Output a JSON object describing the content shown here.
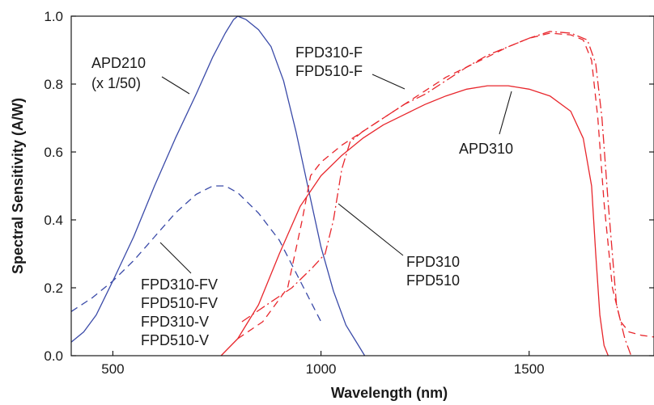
{
  "chart_data": {
    "type": "line",
    "title": "",
    "xlabel": "Wavelength (nm)",
    "ylabel": "Spectral Sensitivity (A/W)",
    "xlim": [
      400,
      1800
    ],
    "ylim": [
      0,
      1.0
    ],
    "x_ticks": [
      500,
      1000,
      1500
    ],
    "x_tick_labels": [
      "500",
      "1000",
      "1500"
    ],
    "y_ticks": [
      0,
      0.2,
      0.4,
      0.6,
      0.8,
      1.0
    ],
    "y_tick_labels": [
      "0.0",
      "0.2",
      "0.4",
      "0.6",
      "0.8",
      "1.0"
    ],
    "grid": false,
    "legend": "none",
    "series": [
      {
        "label": "APD210 (x 1/50)",
        "color": "#3a4aa8",
        "style": "solid",
        "points": [
          [
            400,
            0.04
          ],
          [
            430,
            0.07
          ],
          [
            460,
            0.12
          ],
          [
            500,
            0.22
          ],
          [
            550,
            0.35
          ],
          [
            600,
            0.5
          ],
          [
            650,
            0.64
          ],
          [
            700,
            0.77
          ],
          [
            740,
            0.88
          ],
          [
            770,
            0.95
          ],
          [
            790,
            0.99
          ],
          [
            800,
            1.0
          ],
          [
            820,
            0.99
          ],
          [
            850,
            0.96
          ],
          [
            880,
            0.91
          ],
          [
            910,
            0.81
          ],
          [
            940,
            0.66
          ],
          [
            970,
            0.49
          ],
          [
            1000,
            0.32
          ],
          [
            1030,
            0.19
          ],
          [
            1060,
            0.09
          ],
          [
            1090,
            0.03
          ],
          [
            1105,
            0.0
          ]
        ]
      },
      {
        "label": "FPD310-FV FPD510-FV FPD310-V FPD510-V",
        "color": "#3a4aa8",
        "style": "dashed",
        "points": [
          [
            400,
            0.13
          ],
          [
            450,
            0.17
          ],
          [
            500,
            0.22
          ],
          [
            550,
            0.28
          ],
          [
            600,
            0.35
          ],
          [
            650,
            0.42
          ],
          [
            700,
            0.475
          ],
          [
            740,
            0.5
          ],
          [
            770,
            0.5
          ],
          [
            800,
            0.48
          ],
          [
            850,
            0.42
          ],
          [
            900,
            0.34
          ],
          [
            950,
            0.22
          ],
          [
            1000,
            0.1
          ]
        ]
      },
      {
        "label": "FPD310-F FPD510-F",
        "color": "#e8262c",
        "style": "dashed",
        "points": [
          [
            1005,
            0.12
          ],
          [
            800,
            0.05
          ],
          [
            860,
            0.1
          ],
          [
            920,
            0.2
          ],
          [
            955,
            0.4
          ],
          [
            975,
            0.53
          ],
          [
            1000,
            0.57
          ],
          [
            1050,
            0.62
          ],
          [
            1100,
            0.66
          ],
          [
            1150,
            0.7
          ],
          [
            1200,
            0.74
          ],
          [
            1250,
            0.78
          ],
          [
            1300,
            0.82
          ],
          [
            1350,
            0.85
          ],
          [
            1400,
            0.88
          ],
          [
            1450,
            0.91
          ],
          [
            1500,
            0.935
          ],
          [
            1550,
            0.95
          ],
          [
            1600,
            0.945
          ],
          [
            1630,
            0.93
          ],
          [
            1650,
            0.87
          ],
          [
            1665,
            0.7
          ],
          [
            1680,
            0.45
          ],
          [
            1700,
            0.2
          ],
          [
            1720,
            0.1
          ],
          [
            1740,
            0.07
          ],
          [
            1770,
            0.06
          ],
          [
            1800,
            0.055
          ]
        ]
      },
      {
        "label": "FPD310 FPD510",
        "color": "#e8262c",
        "style": "dashdot",
        "points": [
          [
            810,
            0.1
          ],
          [
            870,
            0.15
          ],
          [
            930,
            0.2
          ],
          [
            980,
            0.26
          ],
          [
            1010,
            0.3
          ],
          [
            1030,
            0.4
          ],
          [
            1050,
            0.55
          ],
          [
            1070,
            0.63
          ],
          [
            1100,
            0.66
          ],
          [
            1150,
            0.7
          ],
          [
            1200,
            0.74
          ],
          [
            1250,
            0.77
          ],
          [
            1300,
            0.81
          ],
          [
            1350,
            0.85
          ],
          [
            1400,
            0.885
          ],
          [
            1450,
            0.91
          ],
          [
            1500,
            0.935
          ],
          [
            1550,
            0.955
          ],
          [
            1600,
            0.95
          ],
          [
            1640,
            0.93
          ],
          [
            1660,
            0.86
          ],
          [
            1675,
            0.7
          ],
          [
            1690,
            0.45
          ],
          [
            1710,
            0.15
          ],
          [
            1730,
            0.05
          ],
          [
            1745,
            0.0
          ]
        ]
      },
      {
        "label": "APD310",
        "color": "#e8262c",
        "style": "solid",
        "points": [
          [
            760,
            0.0
          ],
          [
            800,
            0.05
          ],
          [
            850,
            0.15
          ],
          [
            900,
            0.3
          ],
          [
            950,
            0.44
          ],
          [
            1000,
            0.53
          ],
          [
            1050,
            0.59
          ],
          [
            1100,
            0.64
          ],
          [
            1150,
            0.68
          ],
          [
            1200,
            0.71
          ],
          [
            1250,
            0.74
          ],
          [
            1300,
            0.765
          ],
          [
            1350,
            0.785
          ],
          [
            1400,
            0.795
          ],
          [
            1450,
            0.795
          ],
          [
            1500,
            0.785
          ],
          [
            1550,
            0.765
          ],
          [
            1600,
            0.72
          ],
          [
            1630,
            0.64
          ],
          [
            1650,
            0.5
          ],
          [
            1660,
            0.3
          ],
          [
            1670,
            0.12
          ],
          [
            1680,
            0.03
          ],
          [
            1690,
            0.0
          ]
        ]
      }
    ],
    "annotations": [
      {
        "lines": [
          "APD210",
          "(x 1/50)"
        ],
        "series": "APD210 (x 1/50)"
      },
      {
        "lines": [
          "FPD310-F",
          "FPD510-F"
        ],
        "series": "FPD310-F FPD510-F"
      },
      {
        "lines": [
          "APD310"
        ],
        "series": "APD310"
      },
      {
        "lines": [
          "FPD310",
          "FPD510"
        ],
        "series": "FPD310 FPD510"
      },
      {
        "lines": [
          "FPD310-FV",
          "FPD510-FV",
          "FPD310-V",
          "FPD510-V"
        ],
        "series": "FPD310-FV FPD510-FV FPD310-V FPD510-V"
      }
    ]
  }
}
